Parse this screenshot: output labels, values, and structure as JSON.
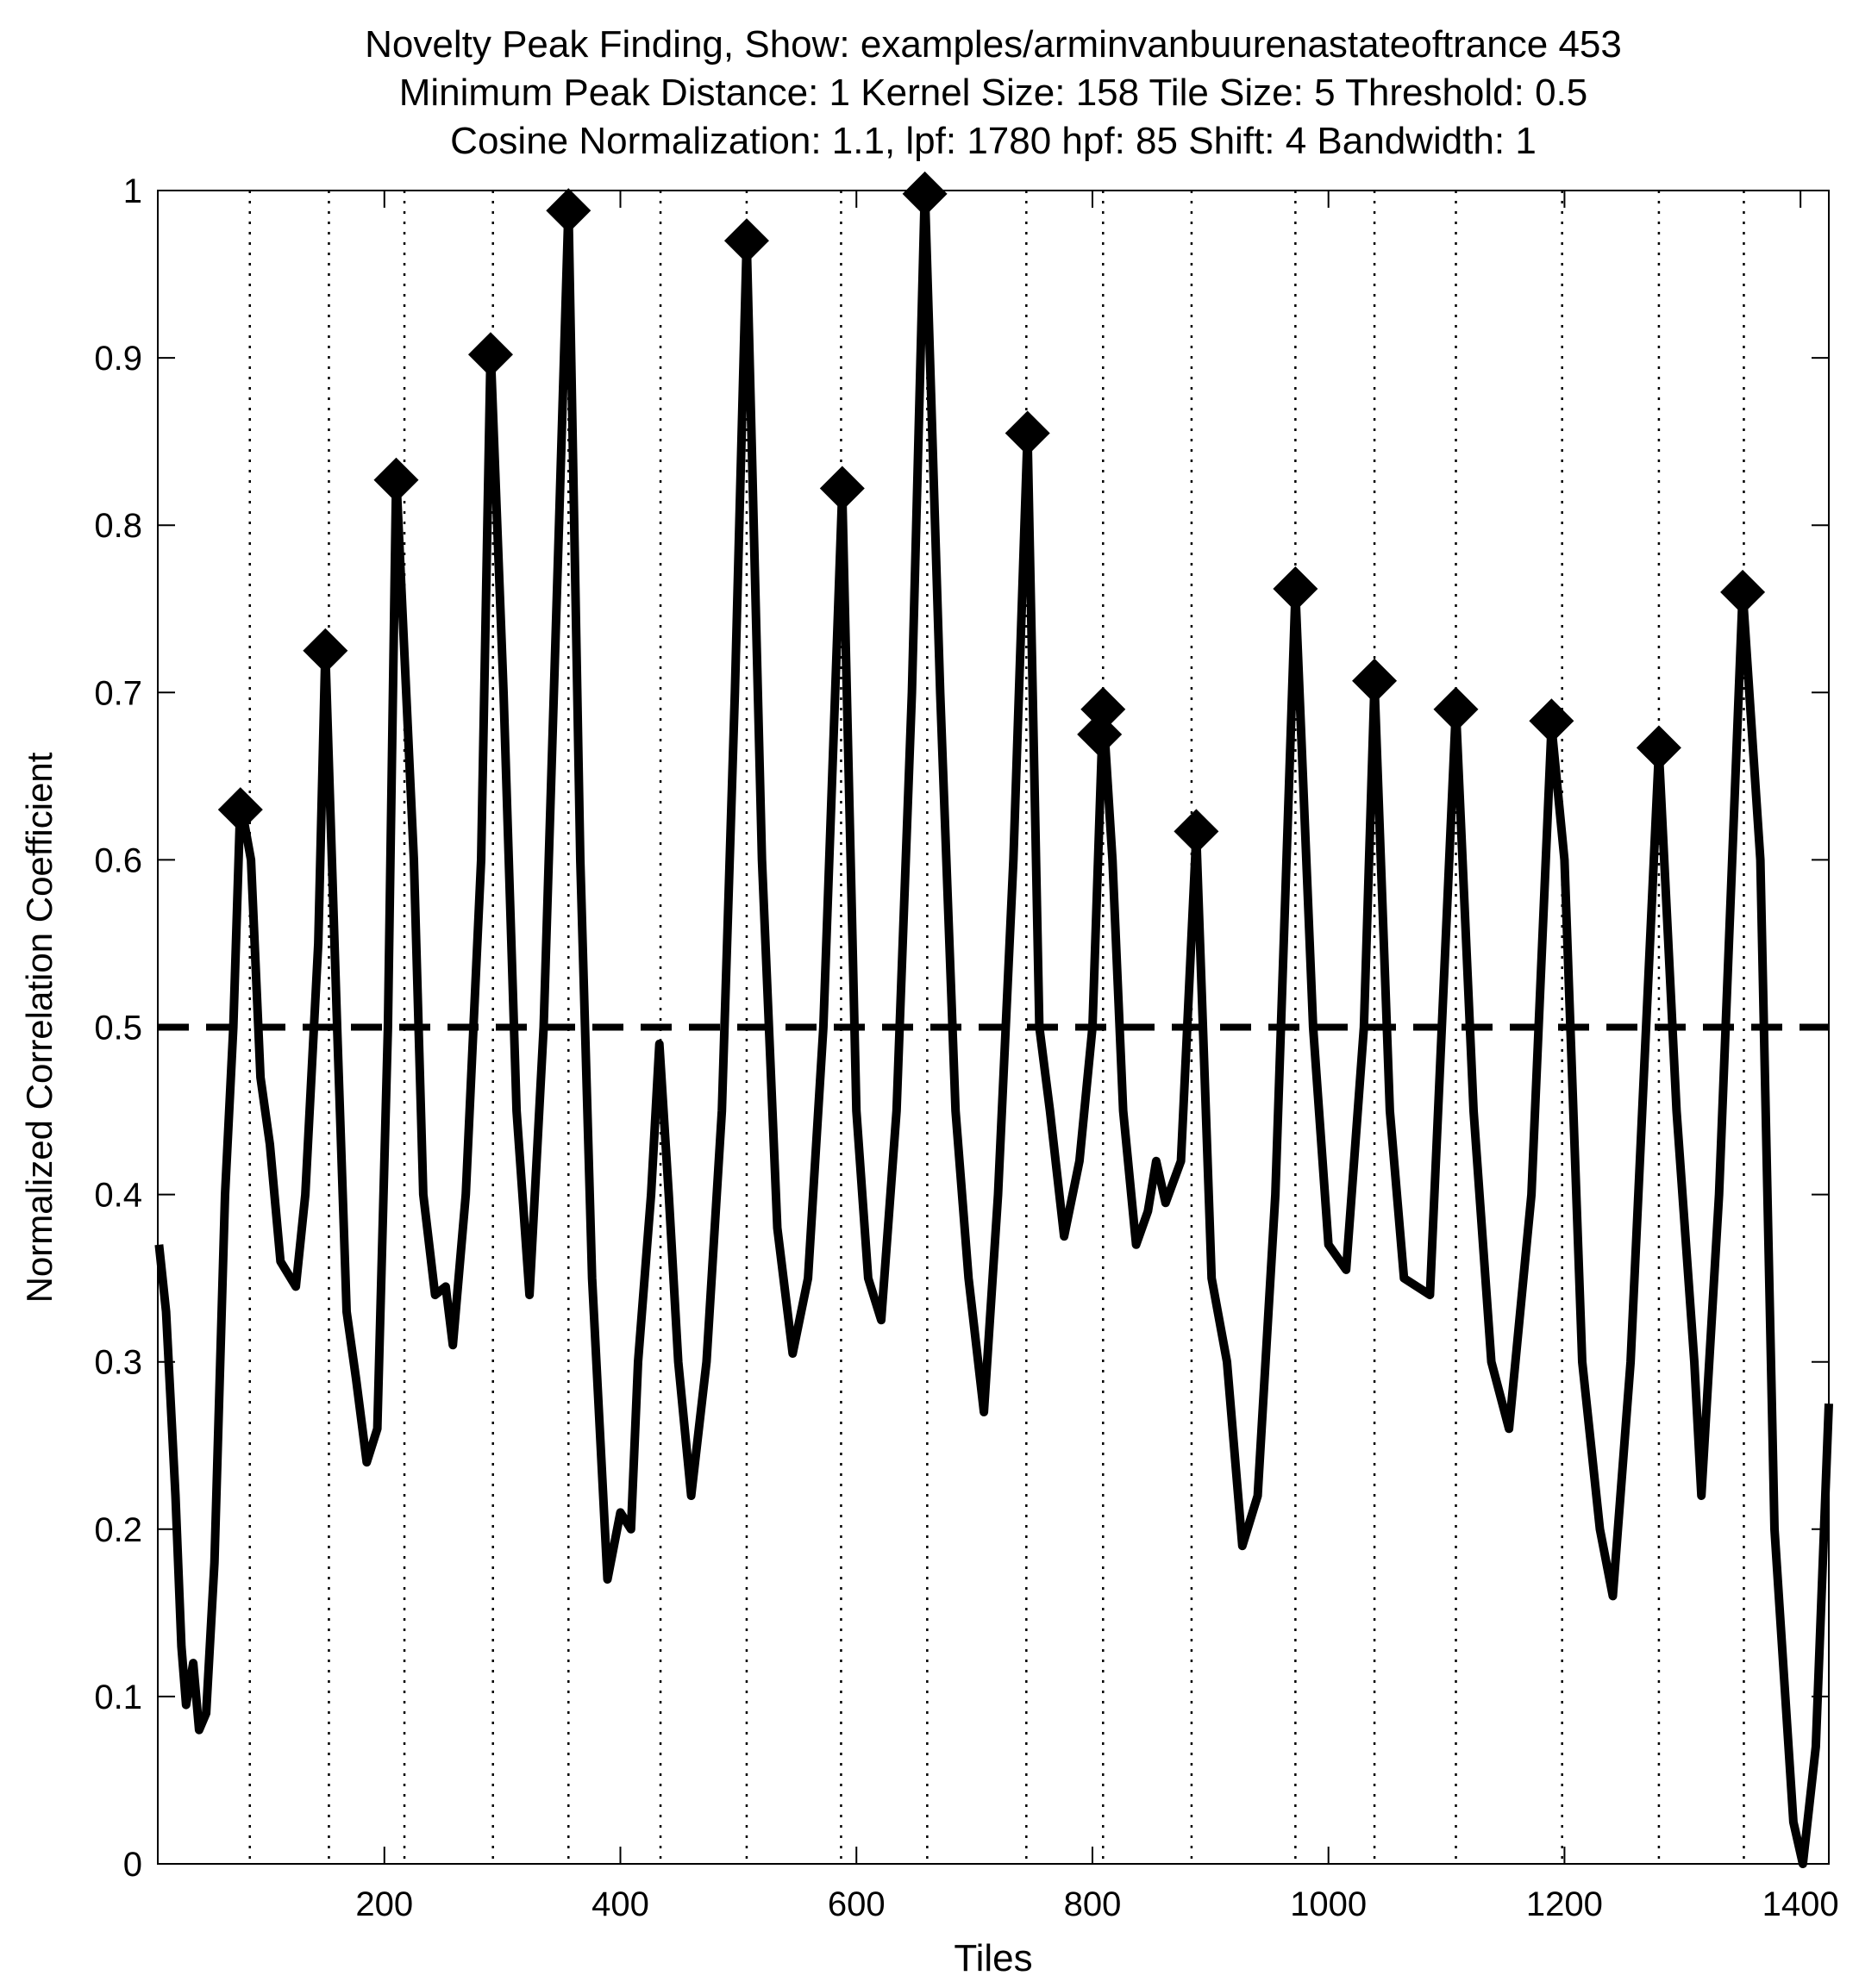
{
  "chart_data": {
    "type": "line",
    "title": [
      "Novelty Peak Finding, Show: examples/arminvanbuurenastateoftrance 453",
      "Minimum Peak Distance: 1 Kernel Size: 158 Tile Size: 5 Threshold: 0.5",
      "Cosine Normalization: 1.1, lpf: 1780 hpf: 85 Shift: 4 Bandwidth: 1"
    ],
    "xlabel": "Tiles",
    "ylabel": "Normalized Correlation Coefficient",
    "xlim": [
      8,
      1424
    ],
    "ylim": [
      0,
      1
    ],
    "xticks": [
      200,
      400,
      600,
      800,
      1000,
      1200,
      1400
    ],
    "yticks": [
      0,
      0.1,
      0.2,
      0.3,
      0.4,
      0.5,
      0.6,
      0.7,
      0.8,
      0.9,
      1
    ],
    "color": "#000000",
    "x": [
      9,
      15,
      23,
      28,
      32,
      38,
      43,
      49,
      56,
      65,
      72,
      78,
      87,
      95,
      103,
      112,
      125,
      133,
      144,
      150,
      160,
      168,
      176,
      185,
      194,
      203,
      210,
      225,
      233,
      243,
      252,
      258,
      269,
      282,
      290,
      301,
      312,
      323,
      335,
      348,
      356,
      366,
      376,
      389,
      400,
      409,
      415,
      426,
      433,
      441,
      449,
      460,
      473,
      486,
      497,
      507,
      520,
      533,
      546,
      559,
      572,
      588,
      600,
      610,
      621,
      634,
      647,
      658,
      671,
      684,
      695,
      708,
      720,
      733,
      745,
      755,
      764,
      776,
      789,
      800,
      809,
      817,
      826,
      837,
      847,
      854,
      862,
      875,
      888,
      901,
      914,
      927,
      940,
      955,
      972,
      987,
      1000,
      1015,
      1030,
      1039,
      1052,
      1064,
      1086,
      1108,
      1123,
      1138,
      1153,
      1172,
      1189,
      1200,
      1215,
      1230,
      1241,
      1256,
      1280,
      1295,
      1310,
      1316,
      1331,
      1351,
      1366,
      1378,
      1394,
      1402,
      1413,
      1424
    ],
    "values": [
      0.37,
      0.33,
      0.22,
      0.13,
      0.095,
      0.12,
      0.08,
      0.09,
      0.18,
      0.4,
      0.5,
      0.635,
      0.6,
      0.47,
      0.43,
      0.36,
      0.345,
      0.4,
      0.55,
      0.725,
      0.5,
      0.33,
      0.29,
      0.24,
      0.26,
      0.5,
      0.83,
      0.6,
      0.4,
      0.34,
      0.345,
      0.31,
      0.4,
      0.6,
      0.905,
      0.7,
      0.45,
      0.34,
      0.5,
      0.8,
      0.99,
      0.6,
      0.35,
      0.17,
      0.21,
      0.2,
      0.3,
      0.4,
      0.49,
      0.4,
      0.3,
      0.22,
      0.3,
      0.45,
      0.7,
      0.97,
      0.6,
      0.38,
      0.305,
      0.35,
      0.5,
      0.82,
      0.45,
      0.35,
      0.325,
      0.45,
      0.7,
      1.0,
      0.7,
      0.45,
      0.35,
      0.27,
      0.4,
      0.6,
      0.855,
      0.5,
      0.45,
      0.375,
      0.42,
      0.5,
      0.69,
      0.6,
      0.45,
      0.37,
      0.39,
      0.42,
      0.395,
      0.42,
      0.615,
      0.35,
      0.3,
      0.19,
      0.22,
      0.4,
      0.76,
      0.5,
      0.37,
      0.355,
      0.5,
      0.705,
      0.45,
      0.35,
      0.34,
      0.69,
      0.45,
      0.3,
      0.26,
      0.4,
      0.68,
      0.6,
      0.3,
      0.2,
      0.16,
      0.3,
      0.665,
      0.45,
      0.3,
      0.22,
      0.4,
      0.76,
      0.6,
      0.2,
      0.025,
      0,
      0.07,
      0.275
    ],
    "peaks": {
      "x": [
        78,
        150,
        210,
        290,
        356,
        507,
        588,
        658,
        745,
        806,
        809,
        888,
        972,
        1039,
        1108,
        1189,
        1280,
        1351
      ],
      "values": [
        0.63,
        0.725,
        0.827,
        0.902,
        0.988,
        0.97,
        0.822,
        0.998,
        0.855,
        0.675,
        0.69,
        0.617,
        0.762,
        0.707,
        0.69,
        0.683,
        0.667,
        0.76
      ]
    },
    "boundaries": [
      86,
      153,
      217,
      292,
      356,
      434,
      507,
      587,
      660,
      744,
      809,
      884,
      972,
      1039,
      1108,
      1198,
      1280,
      1352
    ],
    "threshold": 0.5
  }
}
